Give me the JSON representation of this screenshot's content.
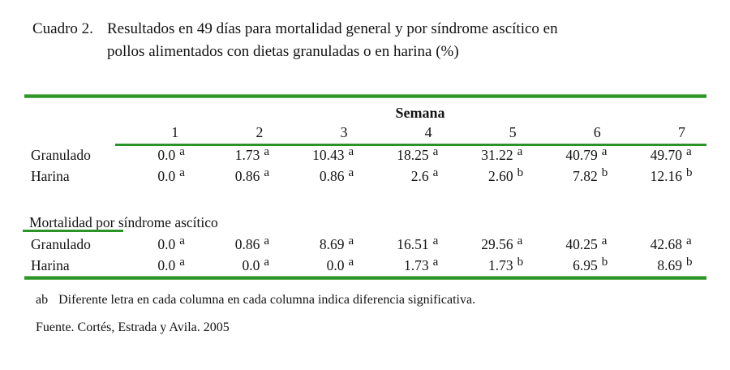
{
  "caption": {
    "label": "Cuadro 2.",
    "lines": [
      "Resultados en 49 días para mortalidad general y por síndrome ascítico en",
      "pollos alimentados con dietas granuladas o en harina (%)"
    ]
  },
  "table": {
    "group_header": "Semana",
    "week_columns": [
      "1",
      "2",
      "3",
      "4",
      "5",
      "6",
      "7"
    ],
    "sections": [
      {
        "rows": [
          {
            "label": "Granulado",
            "cells": [
              {
                "value": "0.0",
                "sig": "a"
              },
              {
                "value": "1.73",
                "sig": "a"
              },
              {
                "value": "10.43",
                "sig": "a"
              },
              {
                "value": "18.25",
                "sig": "a"
              },
              {
                "value": "31.22",
                "sig": "a"
              },
              {
                "value": "40.79",
                "sig": "a"
              },
              {
                "value": "49.70",
                "sig": "a"
              }
            ]
          },
          {
            "label": "Harina",
            "cells": [
              {
                "value": "0.0",
                "sig": "a"
              },
              {
                "value": "0.86",
                "sig": "a"
              },
              {
                "value": "0.86",
                "sig": "a"
              },
              {
                "value": "2.6",
                "sig": "a"
              },
              {
                "value": "2.60",
                "sig": "b"
              },
              {
                "value": "7.82",
                "sig": "b"
              },
              {
                "value": "12.16",
                "sig": "b"
              }
            ]
          }
        ]
      },
      {
        "heading": "Mortalidad por síndrome ascítico",
        "rows": [
          {
            "label": "Granulado",
            "cells": [
              {
                "value": "0.0",
                "sig": "a"
              },
              {
                "value": "0.86",
                "sig": "a"
              },
              {
                "value": "8.69",
                "sig": "a"
              },
              {
                "value": "16.51",
                "sig": "a"
              },
              {
                "value": "29.56",
                "sig": "a"
              },
              {
                "value": "40.25",
                "sig": "a"
              },
              {
                "value": "42.68",
                "sig": "a"
              }
            ]
          },
          {
            "label": "Harina",
            "cells": [
              {
                "value": "0.0",
                "sig": "a"
              },
              {
                "value": "0.0",
                "sig": "a"
              },
              {
                "value": "0.0",
                "sig": "a"
              },
              {
                "value": "1.73",
                "sig": "a"
              },
              {
                "value": "1.73",
                "sig": "b"
              },
              {
                "value": "6.95",
                "sig": "b"
              },
              {
                "value": "8.69",
                "sig": "b"
              }
            ]
          }
        ]
      }
    ]
  },
  "footnotes": {
    "marker": "ab",
    "note": "Diferente letra en cada columna en cada columna indica diferencia significativa.",
    "source": "Fuente. Cortés, Estrada y Avila. 2005"
  },
  "colors": {
    "accent_green": "#2a9428"
  }
}
